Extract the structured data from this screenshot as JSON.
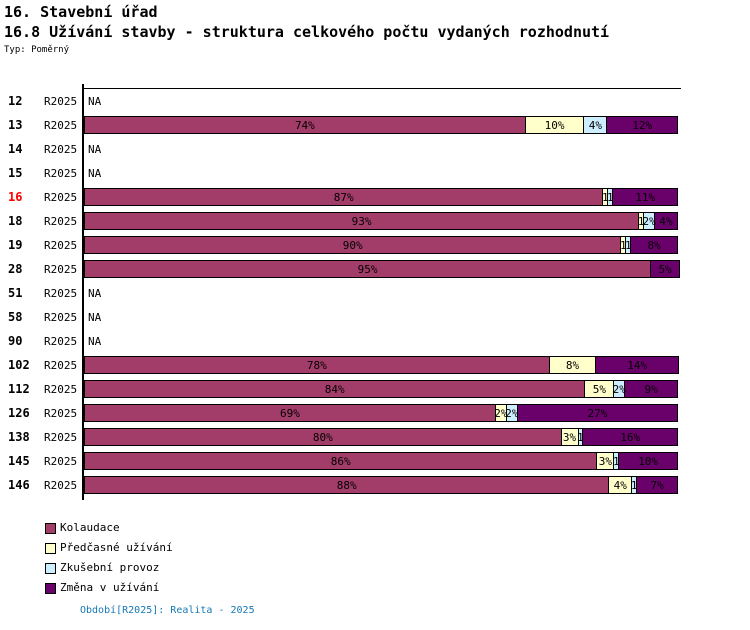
{
  "header": {
    "title1": "16. Stavební úřad",
    "title2": "16.8 Užívání stavby - struktura celkového počtu vydaných rozhodnutí",
    "type_label": "Typ: Poměrný"
  },
  "na_label": "NA",
  "period_label": "R2025",
  "colors": {
    "series": [
      "#A23C69",
      "#FFFFCC",
      "#CCEEFF",
      "#6A006A"
    ],
    "highlight_row": "#FF0000",
    "axis": "#000000",
    "footer_text": "#1778B4"
  },
  "legend": [
    {
      "key": "kolaudace",
      "label": "Kolaudace",
      "color": "#A23C69"
    },
    {
      "key": "predcasne-uzivani",
      "label": "Předčasné užívání",
      "color": "#FFFFCC"
    },
    {
      "key": "zkusebni-provoz",
      "label": "Zkušební provoz",
      "color": "#CCEEFF"
    },
    {
      "key": "zmena-v-uzivani",
      "label": "Změna v užívání",
      "color": "#6A006A"
    }
  ],
  "footer": {
    "text": "Období[R2025]: Realita - 2025"
  },
  "chart_data": {
    "type": "bar",
    "stacked": true,
    "orientation": "horizontal",
    "unit": "%",
    "x_range": [
      0,
      100
    ],
    "period": "R2025",
    "series_names": [
      "Kolaudace",
      "Předčasné užívání",
      "Zkušební provoz",
      "Změna v užívání"
    ],
    "categories": [
      "12",
      "13",
      "14",
      "15",
      "16",
      "18",
      "19",
      "28",
      "51",
      "58",
      "90",
      "102",
      "112",
      "126",
      "138",
      "145",
      "146"
    ],
    "na_rows": [
      "12",
      "14",
      "15",
      "51",
      "58",
      "90"
    ],
    "rows": [
      {
        "id": "12",
        "na": true
      },
      {
        "id": "13",
        "segments": [
          {
            "value": 74,
            "label": "74%"
          },
          {
            "value": 10,
            "label": "10%"
          },
          {
            "value": 4,
            "label": "4%"
          },
          {
            "value": 12,
            "label": "12%"
          }
        ]
      },
      {
        "id": "14",
        "na": true
      },
      {
        "id": "15",
        "na": true
      },
      {
        "id": "16",
        "highlight": true,
        "segments": [
          {
            "value": 87,
            "label": "87%"
          },
          {
            "value": 1,
            "label": "1"
          },
          {
            "value": 1,
            "label": "1"
          },
          {
            "value": 11,
            "label": "11%"
          }
        ]
      },
      {
        "id": "18",
        "segments": [
          {
            "value": 93,
            "label": "93%"
          },
          {
            "value": 1,
            "label": "1"
          },
          {
            "value": 2,
            "label": "2%"
          },
          {
            "value": 4,
            "label": "4%"
          }
        ]
      },
      {
        "id": "19",
        "segments": [
          {
            "value": 90,
            "label": "90%"
          },
          {
            "value": 1,
            "label": "1"
          },
          {
            "value": 1,
            "label": "1"
          },
          {
            "value": 8,
            "label": "8%"
          }
        ]
      },
      {
        "id": "28",
        "segments": [
          {
            "value": 95,
            "label": "95%"
          },
          {
            "value": 0,
            "label": ""
          },
          {
            "value": 0,
            "label": ""
          },
          {
            "value": 5,
            "label": "5%"
          }
        ]
      },
      {
        "id": "51",
        "na": true
      },
      {
        "id": "58",
        "na": true
      },
      {
        "id": "90",
        "na": true
      },
      {
        "id": "102",
        "segments": [
          {
            "value": 78,
            "label": "78%"
          },
          {
            "value": 8,
            "label": "8%"
          },
          {
            "value": 0,
            "label": ""
          },
          {
            "value": 14,
            "label": "14%"
          }
        ]
      },
      {
        "id": "112",
        "segments": [
          {
            "value": 84,
            "label": "84%"
          },
          {
            "value": 5,
            "label": "5%"
          },
          {
            "value": 2,
            "label": "2%"
          },
          {
            "value": 9,
            "label": "9%"
          }
        ]
      },
      {
        "id": "126",
        "segments": [
          {
            "value": 69,
            "label": "69%"
          },
          {
            "value": 2,
            "label": "2%"
          },
          {
            "value": 2,
            "label": "2%"
          },
          {
            "value": 27,
            "label": "27%"
          }
        ]
      },
      {
        "id": "138",
        "segments": [
          {
            "value": 80,
            "label": "80%"
          },
          {
            "value": 3,
            "label": "3%"
          },
          {
            "value": 1,
            "label": "1"
          },
          {
            "value": 16,
            "label": "16%"
          }
        ]
      },
      {
        "id": "145",
        "segments": [
          {
            "value": 86,
            "label": "86%"
          },
          {
            "value": 3,
            "label": "3%"
          },
          {
            "value": 1,
            "label": "1"
          },
          {
            "value": 10,
            "label": "10%"
          }
        ]
      },
      {
        "id": "146",
        "segments": [
          {
            "value": 88,
            "label": "88%"
          },
          {
            "value": 4,
            "label": "4%"
          },
          {
            "value": 1,
            "label": "1"
          },
          {
            "value": 7,
            "label": "7%"
          }
        ]
      }
    ]
  }
}
